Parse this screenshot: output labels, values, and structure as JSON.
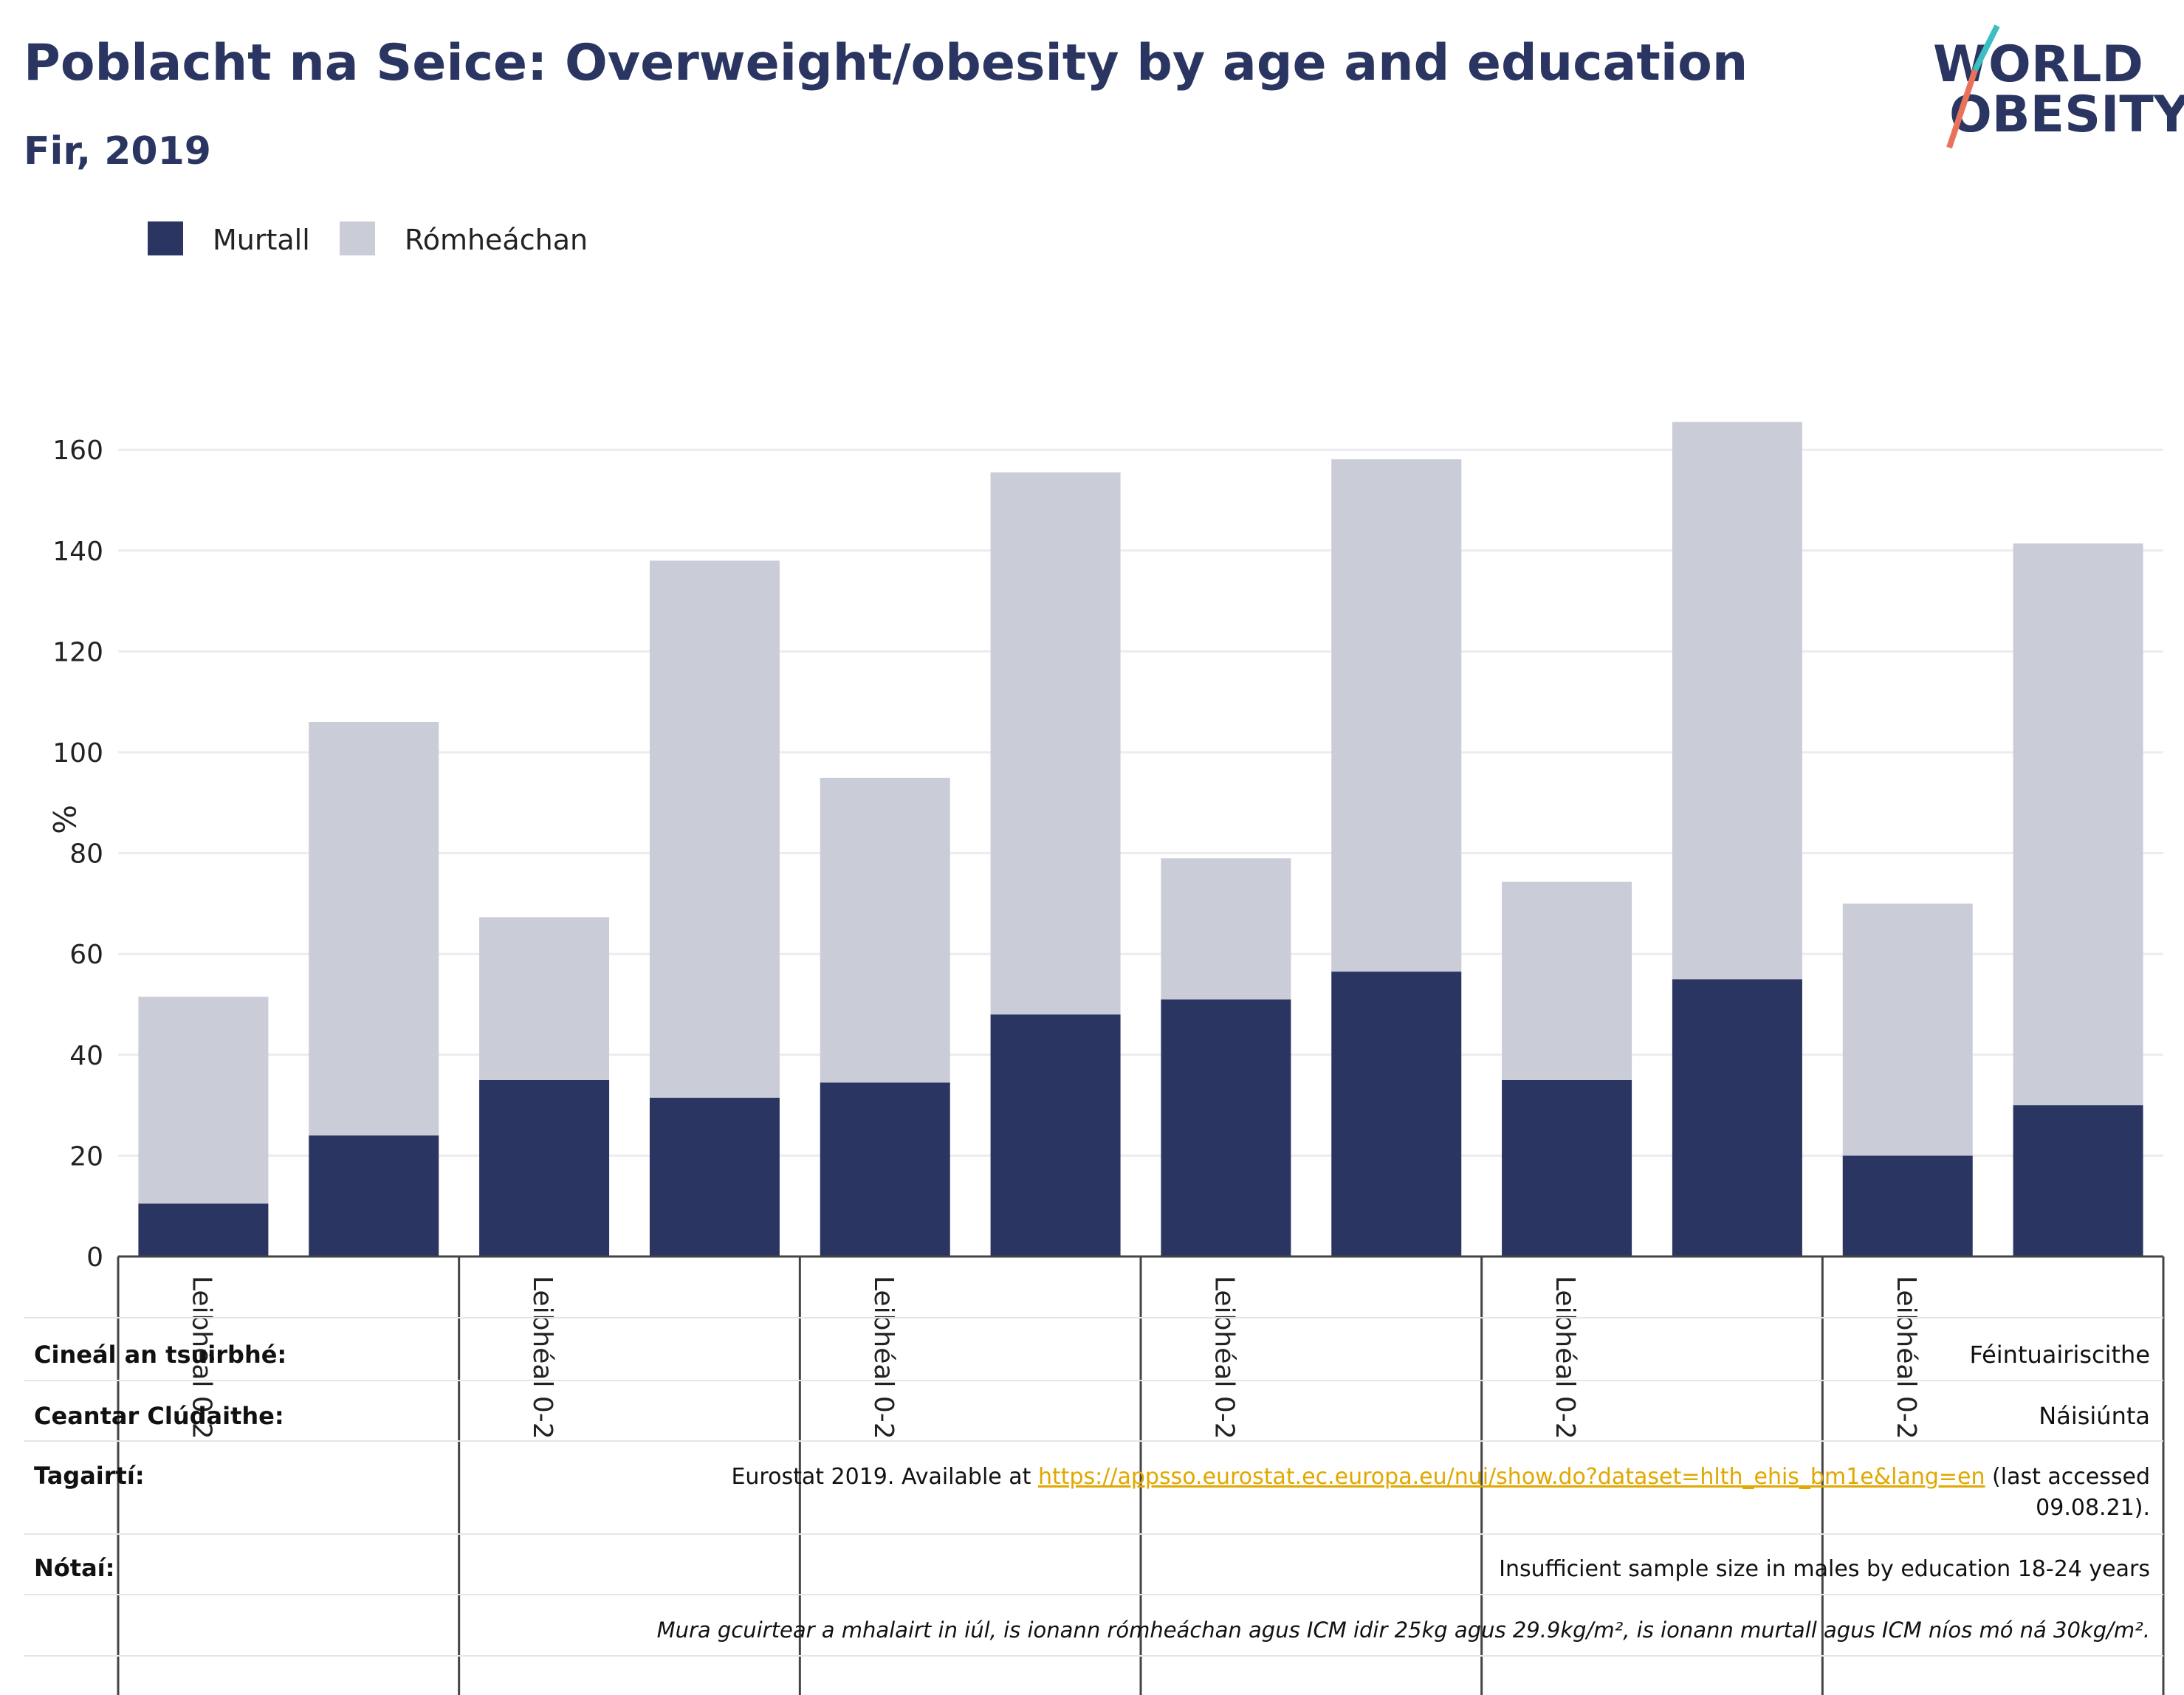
{
  "header": {
    "title": "Poblacht na Seice: Overweight/obesity by age and education",
    "subtitle": "Fir, 2019"
  },
  "logo": {
    "line1": "WORLD",
    "line2": "OBESITY",
    "accent_teal": "#3bbfc1",
    "accent_coral": "#e8735a"
  },
  "colors": {
    "obese": "#2a3561",
    "overweight": "#caccd8",
    "title": "#2a3561",
    "link": "#e0a800"
  },
  "chart_data": {
    "type": "bar",
    "stacked": true,
    "ylabel": "%",
    "ylim": [
      0,
      170
    ],
    "yticks": [
      0,
      20,
      40,
      60,
      80,
      100,
      120,
      140,
      160
    ],
    "grid": true,
    "legend_position": "top-left",
    "categories": [
      "Leibhéal 0-2",
      "",
      "Leibhéal 0-2",
      "",
      "Leibhéal 0-2",
      "",
      "Leibhéal 0-2",
      "",
      "Leibhéal 0-2",
      "",
      "Leibhéal 0-2",
      ""
    ],
    "series": [
      {
        "name": "Murtall",
        "values": [
          10.5,
          24,
          35,
          31.5,
          34.5,
          48,
          51,
          56.5,
          35,
          55,
          20,
          30
        ]
      },
      {
        "name": "Rómheáchan",
        "values": [
          41,
          82,
          32.3,
          106.5,
          60.4,
          107.5,
          28,
          101.6,
          39.3,
          110.5,
          50,
          111.4
        ]
      }
    ]
  },
  "meta": {
    "survey_type_label": "Cineál an tsuirbhé:",
    "survey_type_value": "Féintuairiscithe",
    "coverage_label": "Ceantar Clúdaithe:",
    "coverage_value": "Náisiúnta",
    "references_label": "Tagairtí:",
    "references_prefix": "Eurostat 2019. Available at ",
    "references_link": "https://appsso.eurostat.ec.europa.eu/nui/show.do?dataset=hlth_ehis_bm1e&lang=en",
    "references_suffix": " (last accessed",
    "references_date": "09.08.21).",
    "notes_label": "Nótaí:",
    "notes_value": "Insufficient sample size in males by education 18-24 years",
    "definition": "Mura gcuirtear a mhalairt in iúl, is ionann rómheáchan agus ICM idir 25kg agus 29.9kg/m², is ionann murtall agus ICM níos mó ná 30kg/m²."
  }
}
